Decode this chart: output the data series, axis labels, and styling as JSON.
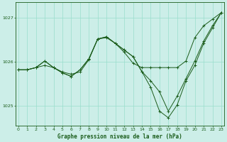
{
  "title": "Graphe pression niveau de la mer (hPa)",
  "bg_color": "#cceee8",
  "grid_color": "#99ddcc",
  "line_color": "#1a5c1a",
  "marker_color": "#1a5c1a",
  "xlim": [
    -0.3,
    23.3
  ],
  "ylim": [
    1024.55,
    1027.35
  ],
  "yticks": [
    1025,
    1026,
    1027
  ],
  "xticks": [
    0,
    1,
    2,
    3,
    4,
    5,
    6,
    7,
    8,
    9,
    10,
    11,
    12,
    13,
    14,
    15,
    16,
    17,
    18,
    19,
    20,
    21,
    22,
    23
  ],
  "series": [
    {
      "x": [
        0,
        1,
        2,
        3,
        4,
        5,
        6,
        7,
        8,
        9,
        10,
        11,
        12,
        13,
        14,
        15,
        16,
        17,
        18,
        19,
        20,
        21,
        22,
        23
      ],
      "y": [
        1025.82,
        1025.82,
        1025.87,
        1025.92,
        1025.87,
        1025.77,
        1025.72,
        1025.77,
        1026.05,
        1026.52,
        1026.55,
        1026.42,
        1026.22,
        1025.97,
        1025.87,
        1025.87,
        1025.87,
        1025.87,
        1025.87,
        1026.02,
        1026.55,
        1026.82,
        1026.97,
        1027.12
      ]
    },
    {
      "x": [
        0,
        1,
        2,
        3,
        4,
        5,
        6,
        7,
        8,
        9,
        10,
        11,
        12,
        13,
        14,
        15,
        16,
        17,
        18,
        19,
        20,
        21,
        22,
        23
      ],
      "y": [
        1025.82,
        1025.82,
        1025.87,
        1026.02,
        1025.87,
        1025.75,
        1025.67,
        1025.82,
        1026.07,
        1026.52,
        1026.57,
        1026.42,
        1026.27,
        1026.12,
        1025.78,
        1025.57,
        1025.32,
        1024.88,
        1025.22,
        1025.62,
        1026.02,
        1026.47,
        1026.82,
        1027.12
      ]
    },
    {
      "x": [
        0,
        1,
        2,
        3,
        4,
        5,
        6,
        7,
        8,
        9,
        10,
        11,
        12,
        13,
        14,
        15,
        16,
        17,
        18,
        19,
        20,
        21,
        22,
        23
      ],
      "y": [
        1025.82,
        1025.82,
        1025.87,
        1026.02,
        1025.87,
        1025.75,
        1025.67,
        1025.82,
        1026.07,
        1026.52,
        1026.57,
        1026.42,
        1026.27,
        1026.12,
        1025.78,
        1025.42,
        1024.88,
        1024.73,
        1025.02,
        1025.57,
        1025.92,
        1026.42,
        1026.77,
        1027.12
      ]
    }
  ]
}
